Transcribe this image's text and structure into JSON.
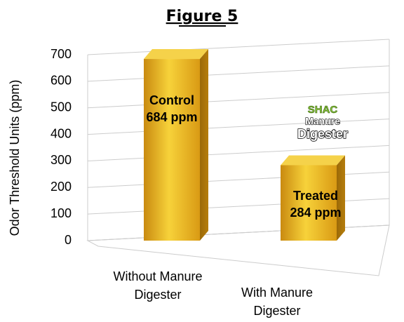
{
  "chart_data": {
    "type": "bar3d",
    "title": "Figure 5",
    "y_label": "Odor Threshold Units (ppm)",
    "categories": [
      "Without Manure\nDigester",
      "With Manure\nDigester"
    ],
    "values": [
      684,
      284
    ],
    "value_labels": [
      "684 ppm",
      "284 ppm"
    ],
    "bar_labels": [
      "Control",
      "Treated"
    ],
    "logo": [
      "SHAC",
      "Manure",
      "Digester"
    ],
    "color": "#e8b21c",
    "ylim": [
      0,
      700
    ],
    "yticks": [
      0,
      100,
      200,
      300,
      400,
      500,
      600,
      700
    ],
    "grid": true
  }
}
